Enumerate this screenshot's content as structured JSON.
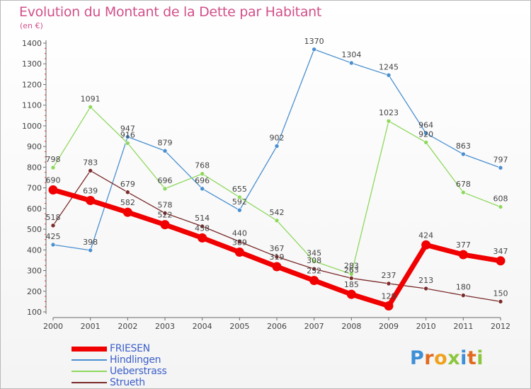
{
  "title": "Evolution du Montant de la Dette par Habitant",
  "subtitle": "(en €)",
  "logo": {
    "text": "Proxiti",
    "letters": [
      "P",
      "r",
      "o",
      "x",
      "i",
      "t",
      "i"
    ],
    "colors": [
      "#3d8fd6",
      "#e06a1e",
      "#f0a21e",
      "#8cc63f",
      "#3d8fd6",
      "#e06a1e",
      "#8cc63f"
    ]
  },
  "chart_data": {
    "type": "line",
    "x": [
      "2000",
      "2001",
      "2002",
      "2003",
      "2004",
      "2005",
      "2006",
      "2007",
      "2008",
      "2009",
      "2010",
      "2011",
      "2012"
    ],
    "ylim": [
      100,
      1400
    ],
    "yticks": [
      100,
      200,
      300,
      400,
      500,
      600,
      700,
      800,
      900,
      1000,
      1100,
      1200,
      1300,
      1400
    ],
    "grid": false,
    "legend_position": "bottom-left",
    "series": [
      {
        "name": "Hindlingen",
        "color": "#4a8fcf",
        "values": [
          425,
          398,
          947,
          879,
          696,
          592,
          902,
          1370,
          1304,
          1245,
          964,
          863,
          797
        ]
      },
      {
        "name": "Ueberstrass",
        "color": "#8fd85e",
        "values": [
          798,
          1091,
          916,
          696,
          768,
          655,
          542,
          345,
          283,
          1023,
          920,
          678,
          608
        ]
      },
      {
        "name": "Strueth",
        "color": "#7b2a2a",
        "values": [
          518,
          783,
          679,
          578,
          514,
          440,
          367,
          308,
          263,
          237,
          213,
          180,
          150
        ]
      },
      {
        "name": "FRIESEN",
        "color": "#f00000",
        "values": [
          690,
          639,
          582,
          522,
          458,
          389,
          319,
          252,
          185,
          129,
          424,
          377,
          347
        ]
      }
    ],
    "legend_order": [
      "FRIESEN",
      "Hindlingen",
      "Ueberstrass",
      "Strueth"
    ]
  }
}
